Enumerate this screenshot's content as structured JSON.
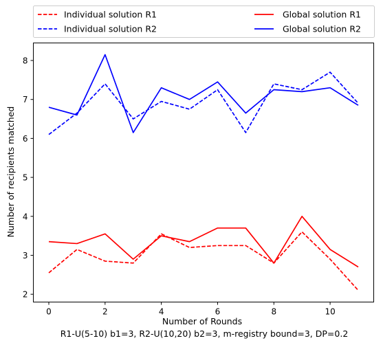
{
  "chart_data": {
    "type": "line",
    "x": [
      0,
      1,
      2,
      3,
      4,
      5,
      6,
      7,
      8,
      9,
      10,
      11
    ],
    "series": [
      {
        "name": "Individual solution R1",
        "color": "#ff0000",
        "dash": "dashed",
        "values": [
          2.55,
          3.15,
          2.85,
          2.8,
          3.55,
          3.2,
          3.25,
          3.25,
          2.8,
          3.6,
          2.9,
          2.1
        ]
      },
      {
        "name": "Individual solution R2",
        "color": "#0000ff",
        "dash": "dashed",
        "values": [
          6.1,
          6.65,
          7.4,
          6.5,
          6.95,
          6.75,
          7.25,
          6.15,
          7.4,
          7.25,
          7.7,
          6.9
        ]
      },
      {
        "name": "Global solution R1",
        "color": "#ff0000",
        "dash": "solid",
        "values": [
          3.35,
          3.3,
          3.55,
          2.9,
          3.5,
          3.35,
          3.7,
          3.7,
          2.8,
          4.0,
          3.15,
          2.7
        ]
      },
      {
        "name": "Global solution R2",
        "color": "#0000ff",
        "dash": "solid",
        "values": [
          6.8,
          6.6,
          8.15,
          6.15,
          7.3,
          7.0,
          7.45,
          6.65,
          7.25,
          7.2,
          7.3,
          6.85
        ]
      }
    ],
    "xlabel": "Number of Rounds",
    "ylabel": "Number of recipients matched",
    "subtitle": "R1-U(5-10) b1=3, R2-U(10,20) b2=3, m-registry bound=3, DP=0.2",
    "xlim": [
      -0.55,
      11.55
    ],
    "ylim": [
      1.8,
      8.45
    ],
    "xticks": [
      "0",
      "2",
      "4",
      "6",
      "8",
      "10"
    ],
    "yticks": [
      "2",
      "3",
      "4",
      "5",
      "6",
      "7",
      "8"
    ],
    "legend_position": "top",
    "grid": false
  }
}
